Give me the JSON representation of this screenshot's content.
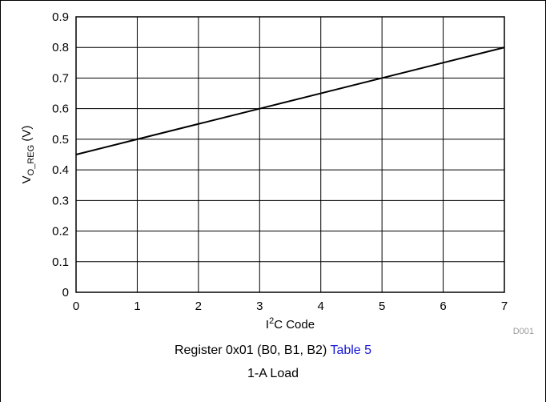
{
  "chart_data": {
    "type": "line",
    "x": [
      0,
      1,
      2,
      3,
      4,
      5,
      6,
      7
    ],
    "series": [
      {
        "values": [
          0.45,
          0.5,
          0.55,
          0.6,
          0.65,
          0.7,
          0.75,
          0.8
        ]
      }
    ],
    "xlabel_parts": {
      "pre": "I",
      "sup": "2",
      "post": "C Code"
    },
    "ylabel_parts": {
      "pre": "V",
      "sub": "O_REG",
      "post": " (V)"
    },
    "xlim": [
      0,
      7
    ],
    "ylim": [
      0,
      0.9
    ],
    "xticks": [
      0,
      1,
      2,
      3,
      4,
      5,
      6,
      7
    ],
    "xtick_labels": [
      "0",
      "1",
      "2",
      "3",
      "4",
      "5",
      "6",
      "7"
    ],
    "yticks": [
      0,
      0.1,
      0.2,
      0.3,
      0.4,
      0.5,
      0.6,
      0.7,
      0.8,
      0.9
    ],
    "ytick_labels": [
      "0",
      "0.1",
      "0.2",
      "0.3",
      "0.4",
      "0.5",
      "0.6",
      "0.7",
      "0.8",
      "0.9"
    ],
    "grid": true,
    "line_color": "#000000",
    "figure_id": "D001"
  },
  "caption": {
    "line1_text": "Register 0x01 (B0, B1, B2) ",
    "line1_link": "Table 5",
    "line2": "1-A Load",
    "link_color": "#1515d8"
  }
}
